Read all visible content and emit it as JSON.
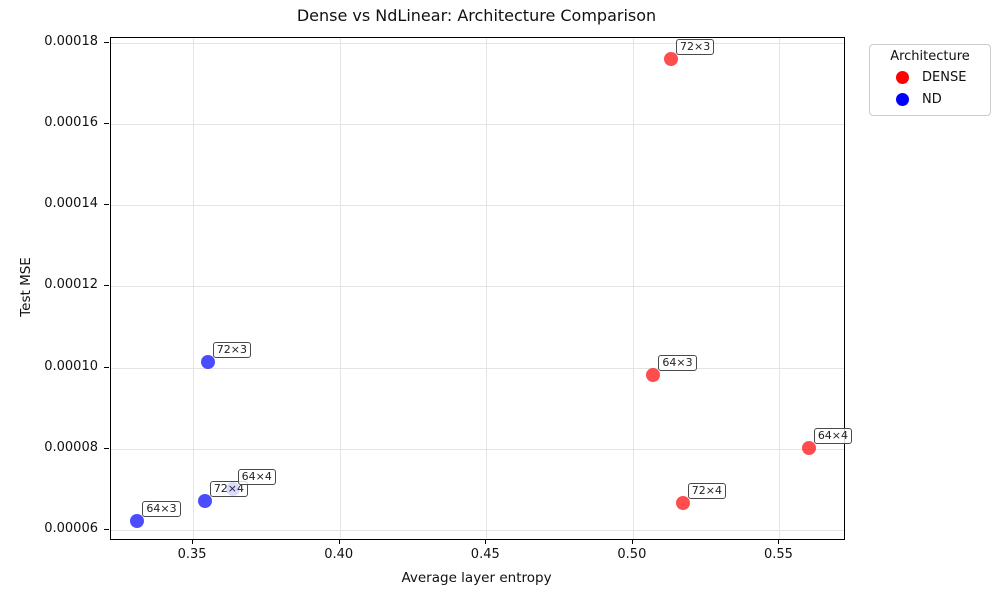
{
  "chart_data": {
    "type": "scatter",
    "title": "Dense vs NdLinear: Architecture Comparison",
    "xlabel": "Average layer entropy",
    "ylabel": "Test MSE",
    "xlim": [
      0.322,
      0.572
    ],
    "ylim": [
      5.78e-05,
      0.0001812
    ],
    "grid": true,
    "x_ticks": {
      "values": [
        0.35,
        0.4,
        0.45,
        0.5,
        0.55
      ],
      "labels": [
        "0.35",
        "0.40",
        "0.45",
        "0.50",
        "0.55"
      ]
    },
    "y_ticks": {
      "values": [
        6e-05,
        8e-05,
        0.0001,
        0.00012,
        0.00014,
        0.00016,
        0.00018
      ],
      "labels": [
        "0.00006",
        "0.00008",
        "0.00010",
        "0.00012",
        "0.00014",
        "0.00016",
        "0.00018"
      ]
    },
    "series": [
      {
        "name": "DENSE",
        "color": "#ff0000",
        "alpha": 0.7,
        "points": [
          {
            "label": "72×3",
            "x": 0.513,
            "y": 0.000176
          },
          {
            "label": "64×3",
            "x": 0.507,
            "y": 9.82e-05
          },
          {
            "label": "64×4",
            "x": 0.56,
            "y": 8.03e-05
          },
          {
            "label": "72×4",
            "x": 0.517,
            "y": 6.67e-05
          }
        ]
      },
      {
        "name": "ND",
        "color": "#0000ff",
        "alpha": 0.7,
        "points": [
          {
            "label": "72×3",
            "x": 0.355,
            "y": 0.0001015
          },
          {
            "label": "72×4",
            "x": 0.354,
            "y": 6.72e-05
          },
          {
            "label": "64×4",
            "x": 0.3635,
            "y": 7e-05
          },
          {
            "label": "64×3",
            "x": 0.331,
            "y": 6.23e-05
          }
        ]
      }
    ]
  },
  "legend": {
    "title": "Architecture",
    "items": [
      {
        "label": "DENSE",
        "color": "#ff0000"
      },
      {
        "label": "ND",
        "color": "#0000ff"
      }
    ]
  }
}
